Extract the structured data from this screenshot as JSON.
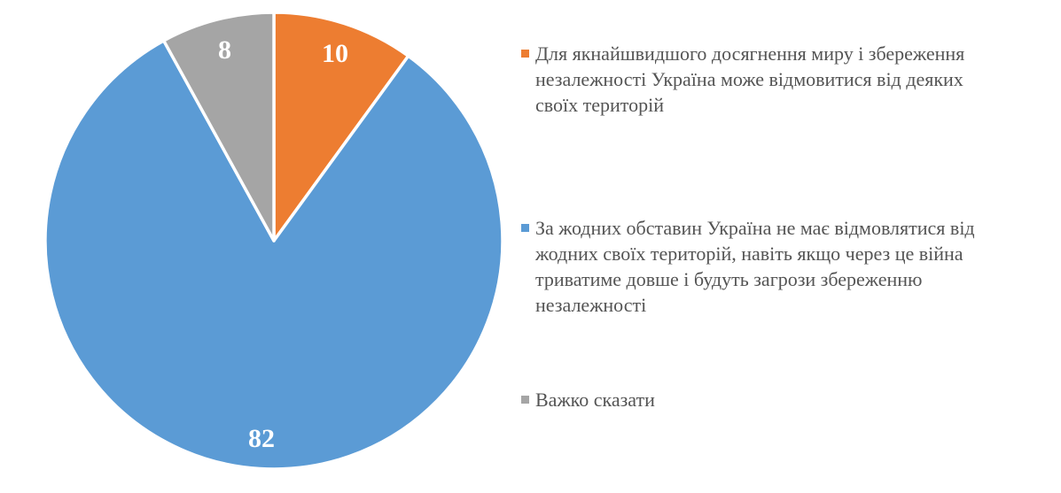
{
  "chart_data": {
    "type": "pie",
    "title": "",
    "total": 100,
    "start_angle_deg": 0,
    "direction": "clockwise",
    "legend_position": "right",
    "grid": false,
    "background_color": "#FFFFFF",
    "slice_border_color": "#FFFFFF",
    "data_label_color": "#FFFFFF",
    "legend_text_color": "#545454",
    "slices": [
      {
        "name": "Для якнайшвидшого досягнення миру і збереження незалежності Україна може відмовитися від деяких своїх територій",
        "value": 10,
        "label": "10",
        "color": "#ED7D31"
      },
      {
        "name": "За жодних обставин Україна не має відмовлятися від жодних своїх територій, навіть якщо через це війна триватиме довше і будуть загрози збереженню незалежності",
        "value": 82,
        "label": "82",
        "color": "#5B9BD5"
      },
      {
        "name": "Важко сказати",
        "value": 8,
        "label": "8",
        "color": "#A5A5A5"
      }
    ]
  }
}
